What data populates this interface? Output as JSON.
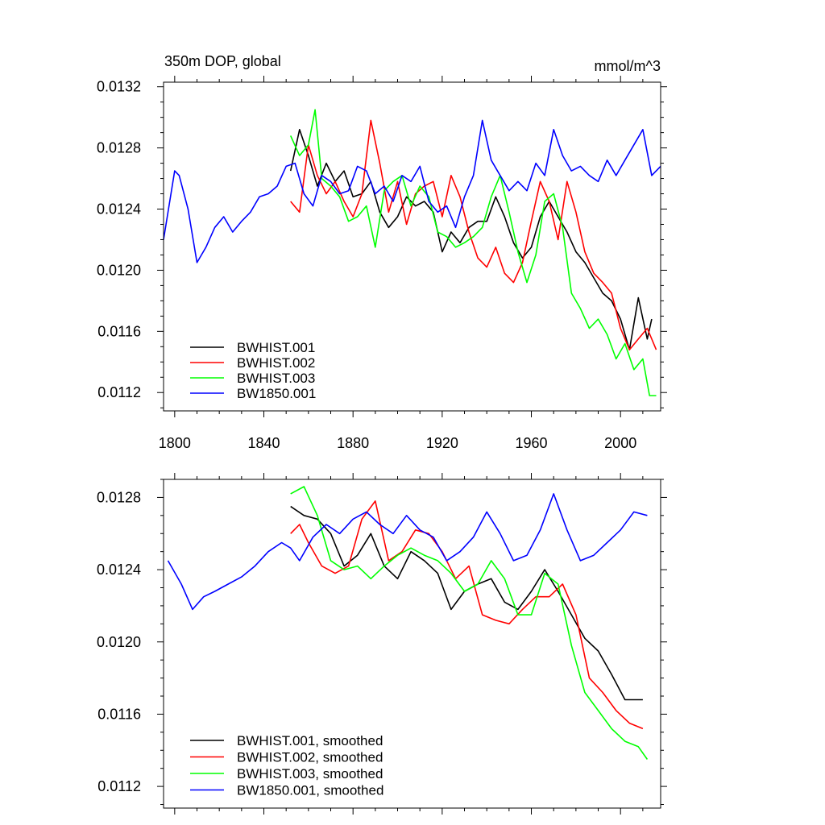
{
  "chart_data": [
    {
      "type": "line",
      "title": "350m DOP, global",
      "units": "mmol/m^3",
      "xlim": [
        1795,
        2018
      ],
      "ylim": [
        0.01108,
        0.01323
      ],
      "xticks": [
        1800,
        1840,
        1880,
        1920,
        1960,
        2000
      ],
      "xtick_labels": [
        "1800",
        "1840",
        "1880",
        "1920",
        "1960",
        "2000"
      ],
      "yticks": [
        0.0112,
        0.0116,
        0.012,
        0.0124,
        0.0128,
        0.0132
      ],
      "ytick_labels": [
        "0.0112",
        "0.0116",
        "0.0120",
        "0.0124",
        "0.0128",
        "0.0132"
      ],
      "legend_position": "bottom-left",
      "series": [
        {
          "name": "BWHIST.001",
          "color": "#000000",
          "x": [
            1852,
            1856,
            1860,
            1864,
            1868,
            1872,
            1876,
            1880,
            1884,
            1888,
            1892,
            1896,
            1900,
            1904,
            1908,
            1912,
            1916,
            1920,
            1924,
            1928,
            1932,
            1936,
            1940,
            1944,
            1948,
            1952,
            1956,
            1960,
            1964,
            1968,
            1972,
            1976,
            1980,
            1984,
            1988,
            1992,
            1996,
            2000,
            2004,
            2008,
            2012,
            2014
          ],
          "values": [
            0.01265,
            0.01292,
            0.01275,
            0.01255,
            0.0127,
            0.01258,
            0.01265,
            0.01248,
            0.0125,
            0.01258,
            0.01238,
            0.01228,
            0.01235,
            0.01248,
            0.01242,
            0.01245,
            0.01238,
            0.01212,
            0.01225,
            0.01218,
            0.01228,
            0.01232,
            0.01232,
            0.01248,
            0.01235,
            0.01218,
            0.01208,
            0.01215,
            0.01235,
            0.01245,
            0.01235,
            0.01225,
            0.01212,
            0.01205,
            0.01195,
            0.01185,
            0.0118,
            0.01168,
            0.01148,
            0.01182,
            0.01155,
            0.01168
          ]
        },
        {
          "name": "BWHIST.002",
          "color": "#ff0000",
          "x": [
            1852,
            1856,
            1860,
            1864,
            1868,
            1872,
            1876,
            1880,
            1884,
            1888,
            1892,
            1896,
            1900,
            1904,
            1908,
            1912,
            1916,
            1920,
            1924,
            1928,
            1932,
            1936,
            1940,
            1944,
            1948,
            1952,
            1956,
            1960,
            1964,
            1968,
            1972,
            1976,
            1980,
            1984,
            1988,
            1992,
            1996,
            2000,
            2004,
            2008,
            2012,
            2016
          ],
          "values": [
            0.01245,
            0.01238,
            0.01282,
            0.01262,
            0.0125,
            0.01258,
            0.01245,
            0.01235,
            0.0125,
            0.01298,
            0.0127,
            0.01238,
            0.01258,
            0.0123,
            0.0125,
            0.01255,
            0.01258,
            0.01235,
            0.01262,
            0.01248,
            0.01225,
            0.01208,
            0.01202,
            0.01215,
            0.01198,
            0.01192,
            0.01205,
            0.01232,
            0.01258,
            0.01245,
            0.0122,
            0.01258,
            0.01238,
            0.01212,
            0.01198,
            0.01192,
            0.01185,
            0.01162,
            0.01148,
            0.01155,
            0.01162,
            0.01148
          ]
        },
        {
          "name": "BWHIST.003",
          "color": "#00ff00",
          "x": [
            1852,
            1856,
            1860,
            1863,
            1866,
            1870,
            1874,
            1878,
            1882,
            1886,
            1890,
            1894,
            1898,
            1902,
            1906,
            1910,
            1914,
            1918,
            1922,
            1926,
            1930,
            1934,
            1938,
            1942,
            1946,
            1950,
            1954,
            1958,
            1962,
            1966,
            1970,
            1974,
            1978,
            1982,
            1986,
            1990,
            1994,
            1998,
            2002,
            2006,
            2010,
            2013,
            2016
          ],
          "values": [
            0.01288,
            0.01275,
            0.01282,
            0.01305,
            0.0126,
            0.01255,
            0.01248,
            0.01232,
            0.01235,
            0.01242,
            0.01215,
            0.01252,
            0.01258,
            0.01262,
            0.01242,
            0.01255,
            0.01248,
            0.01225,
            0.01222,
            0.01215,
            0.01218,
            0.01222,
            0.01228,
            0.01248,
            0.01262,
            0.01238,
            0.01212,
            0.01192,
            0.0121,
            0.01245,
            0.0125,
            0.01228,
            0.01185,
            0.01175,
            0.01162,
            0.01168,
            0.01158,
            0.01142,
            0.01152,
            0.01135,
            0.01142,
            0.01118,
            0.01118
          ]
        },
        {
          "name": "BW1850.001",
          "color": "#0000ff",
          "x": [
            1795,
            1800,
            1802,
            1806,
            1810,
            1814,
            1818,
            1822,
            1826,
            1830,
            1834,
            1838,
            1842,
            1846,
            1850,
            1854,
            1858,
            1862,
            1866,
            1870,
            1874,
            1878,
            1882,
            1886,
            1890,
            1894,
            1898,
            1902,
            1906,
            1910,
            1914,
            1918,
            1922,
            1926,
            1930,
            1934,
            1938,
            1942,
            1946,
            1950,
            1954,
            1958,
            1962,
            1966,
            1970,
            1974,
            1978,
            1982,
            1986,
            1990,
            1994,
            1998,
            2002,
            2006,
            2010,
            2014,
            2018
          ],
          "values": [
            0.0122,
            0.01265,
            0.01262,
            0.0124,
            0.01205,
            0.01215,
            0.01228,
            0.01235,
            0.01225,
            0.01232,
            0.01238,
            0.01248,
            0.0125,
            0.01255,
            0.01268,
            0.0127,
            0.0125,
            0.01242,
            0.01262,
            0.01258,
            0.0125,
            0.01252,
            0.01268,
            0.01265,
            0.0125,
            0.01255,
            0.01245,
            0.01262,
            0.01258,
            0.01268,
            0.01245,
            0.01238,
            0.01242,
            0.01228,
            0.01248,
            0.01262,
            0.01298,
            0.01272,
            0.01262,
            0.01252,
            0.01258,
            0.01252,
            0.0127,
            0.01262,
            0.01292,
            0.01275,
            0.01265,
            0.01268,
            0.01262,
            0.01258,
            0.01272,
            0.01262,
            0.01272,
            0.01282,
            0.01292,
            0.01262,
            0.01268
          ]
        }
      ]
    },
    {
      "type": "line",
      "xlim": [
        1795,
        2018
      ],
      "ylim": [
        0.01108,
        0.0129
      ],
      "xticks": [
        1800,
        1840,
        1880,
        1920,
        1960,
        2000
      ],
      "yticks": [
        0.0112,
        0.0116,
        0.012,
        0.0124,
        0.0128
      ],
      "ytick_labels": [
        "0.0112",
        "0.0116",
        "0.0120",
        "0.0124",
        "0.0128"
      ],
      "legend_position": "bottom-left",
      "series": [
        {
          "name": "BWHIST.001, smoothed",
          "color": "#000000",
          "x": [
            1852,
            1858,
            1864,
            1870,
            1876,
            1882,
            1888,
            1894,
            1900,
            1906,
            1912,
            1918,
            1924,
            1930,
            1936,
            1942,
            1948,
            1954,
            1960,
            1966,
            1972,
            1978,
            1984,
            1990,
            1996,
            2002,
            2006,
            2010
          ],
          "values": [
            0.01275,
            0.0127,
            0.01268,
            0.0126,
            0.01242,
            0.01248,
            0.0126,
            0.01242,
            0.01235,
            0.0125,
            0.01245,
            0.01238,
            0.01218,
            0.01228,
            0.01232,
            0.01235,
            0.01222,
            0.01218,
            0.01228,
            0.0124,
            0.01228,
            0.01215,
            0.01202,
            0.01195,
            0.01182,
            0.01168,
            0.01168,
            0.01168
          ]
        },
        {
          "name": "BWHIST.002, smoothed",
          "color": "#ff0000",
          "x": [
            1852,
            1856,
            1860,
            1866,
            1872,
            1878,
            1884,
            1890,
            1896,
            1902,
            1908,
            1914,
            1920,
            1926,
            1932,
            1938,
            1944,
            1950,
            1956,
            1962,
            1968,
            1974,
            1980,
            1986,
            1992,
            1998,
            2004,
            2010
          ],
          "values": [
            0.0126,
            0.01265,
            0.01255,
            0.01242,
            0.01238,
            0.01242,
            0.01268,
            0.01278,
            0.01245,
            0.0125,
            0.01262,
            0.0126,
            0.0125,
            0.01235,
            0.01242,
            0.01215,
            0.01212,
            0.0121,
            0.01218,
            0.01225,
            0.01225,
            0.01232,
            0.01215,
            0.0118,
            0.01172,
            0.01162,
            0.01155,
            0.01152
          ]
        },
        {
          "name": "BWHIST.003, smoothed",
          "color": "#00ff00",
          "x": [
            1852,
            1858,
            1864,
            1870,
            1876,
            1882,
            1888,
            1894,
            1900,
            1906,
            1912,
            1918,
            1924,
            1930,
            1936,
            1942,
            1948,
            1954,
            1960,
            1966,
            1972,
            1978,
            1984,
            1990,
            1996,
            2002,
            2008,
            2012
          ],
          "values": [
            0.01282,
            0.01286,
            0.0127,
            0.01245,
            0.0124,
            0.01242,
            0.01235,
            0.01242,
            0.01248,
            0.01252,
            0.01248,
            0.01245,
            0.01238,
            0.01228,
            0.01232,
            0.01245,
            0.01235,
            0.01215,
            0.01215,
            0.01238,
            0.01232,
            0.01198,
            0.01172,
            0.01162,
            0.01152,
            0.01145,
            0.01142,
            0.01135
          ]
        },
        {
          "name": "BW1850.001, smoothed",
          "color": "#0000ff",
          "x": [
            1797,
            1803,
            1808,
            1813,
            1818,
            1824,
            1830,
            1836,
            1842,
            1848,
            1852,
            1856,
            1862,
            1868,
            1874,
            1880,
            1886,
            1892,
            1898,
            1904,
            1910,
            1916,
            1922,
            1928,
            1934,
            1940,
            1946,
            1952,
            1958,
            1964,
            1970,
            1976,
            1982,
            1988,
            1994,
            2000,
            2006,
            2012
          ],
          "values": [
            0.01245,
            0.01232,
            0.01218,
            0.01225,
            0.01228,
            0.01232,
            0.01236,
            0.01242,
            0.0125,
            0.01255,
            0.01252,
            0.01245,
            0.01258,
            0.01265,
            0.0126,
            0.01268,
            0.01272,
            0.01265,
            0.0126,
            0.0127,
            0.01262,
            0.01258,
            0.01245,
            0.0125,
            0.01258,
            0.01272,
            0.0126,
            0.01245,
            0.01248,
            0.01262,
            0.01282,
            0.01262,
            0.01245,
            0.01248,
            0.01255,
            0.01262,
            0.01272,
            0.0127
          ]
        }
      ]
    }
  ]
}
